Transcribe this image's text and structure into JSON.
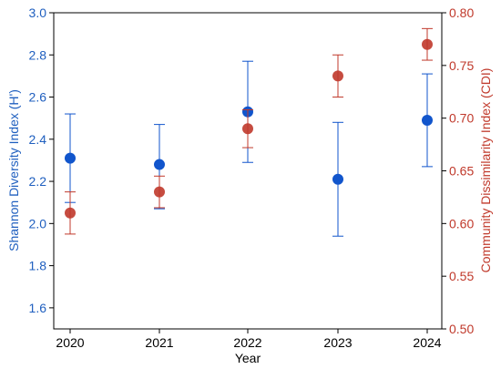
{
  "chart_data": {
    "type": "scatter",
    "xlabel": "Year",
    "categories": [
      "2020",
      "2021",
      "2022",
      "2023",
      "2024"
    ],
    "left_axis": {
      "label": "Shannon Diversity Index (H')",
      "ylim": [
        1.5,
        3.0
      ],
      "ticks": [
        "1.6",
        "1.8",
        "2.0",
        "2.2",
        "2.4",
        "2.6",
        "2.8",
        "3.0"
      ],
      "color": "#1f5fbf"
    },
    "right_axis": {
      "label": "Community Dissimilarity Index (CDI)",
      "ylim": [
        0.5,
        0.8
      ],
      "ticks": [
        "0.50",
        "0.55",
        "0.60",
        "0.65",
        "0.70",
        "0.75",
        "0.80"
      ],
      "color": "#c0392b"
    },
    "series": [
      {
        "axis": "left",
        "color": "#1155cc",
        "values": [
          2.31,
          2.28,
          2.53,
          2.21,
          2.49
        ],
        "err_low": [
          2.1,
          2.07,
          2.29,
          1.94,
          2.27
        ],
        "err_high": [
          2.52,
          2.47,
          2.77,
          2.48,
          2.71
        ]
      },
      {
        "axis": "right",
        "color": "#c0392b",
        "values": [
          0.61,
          0.63,
          0.69,
          0.74,
          0.77
        ],
        "err_low": [
          0.59,
          0.615,
          0.672,
          0.72,
          0.755
        ],
        "err_high": [
          0.63,
          0.645,
          0.708,
          0.76,
          0.785
        ]
      }
    ],
    "grid": false
  }
}
